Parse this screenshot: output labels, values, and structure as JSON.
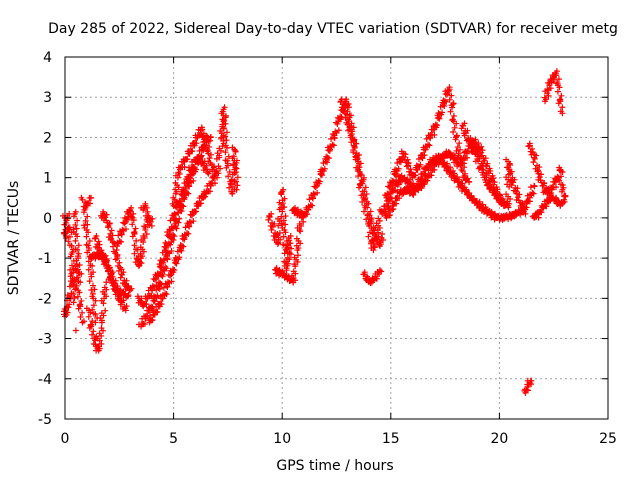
{
  "chart_data": {
    "type": "scatter",
    "title": "Day 285 of 2022, Sidereal Day-to-day VTEC variation (SDTVAR) for receiver metg",
    "xlabel": "GPS time / hours",
    "ylabel": "SDTVAR / TECUs",
    "xlim": [
      0,
      25
    ],
    "ylim": [
      -5,
      4
    ],
    "xticks": [
      0,
      5,
      10,
      15,
      20,
      25
    ],
    "yticks": [
      -5,
      -4,
      -3,
      -2,
      -1,
      0,
      1,
      2,
      3,
      4
    ],
    "grid": true,
    "marker": "+",
    "marker_color": "#ff0000",
    "series": [
      {
        "name": "SDTVAR",
        "points": [
          [
            0.0,
            0.0
          ],
          [
            0.05,
            -0.5
          ],
          [
            0.1,
            0.05
          ],
          [
            0.2,
            -0.3
          ],
          [
            0.3,
            -0.9
          ],
          [
            0.35,
            -1.5
          ],
          [
            0.4,
            -2.1
          ],
          [
            0.1,
            -2.2
          ],
          [
            0.0,
            -2.45
          ],
          [
            0.5,
            -1.2
          ],
          [
            0.6,
            -1.8
          ],
          [
            0.7,
            -2.2
          ],
          [
            0.8,
            -2.6
          ],
          [
            0.5,
            -2.8
          ],
          [
            0.45,
            0.1
          ],
          [
            0.5,
            -0.4
          ],
          [
            0.6,
            -1.0
          ],
          [
            0.7,
            -1.6
          ],
          [
            0.8,
            0.45
          ],
          [
            0.9,
            0.2
          ],
          [
            1.0,
            -0.3
          ],
          [
            1.1,
            -0.8
          ],
          [
            1.2,
            -1.4
          ],
          [
            1.3,
            -2.0
          ],
          [
            1.4,
            -2.6
          ],
          [
            1.1,
            -2.3
          ],
          [
            1.2,
            -2.7
          ],
          [
            1.35,
            -3.0
          ],
          [
            1.45,
            -3.2
          ],
          [
            1.55,
            -3.3
          ],
          [
            1.6,
            -3.05
          ],
          [
            1.7,
            -2.6
          ],
          [
            1.8,
            -2.0
          ],
          [
            1.9,
            -1.6
          ],
          [
            1.0,
            0.3
          ],
          [
            1.2,
            0.5
          ],
          [
            1.2,
            -1.0
          ],
          [
            1.5,
            -0.9
          ],
          [
            1.8,
            -1.0
          ],
          [
            2.0,
            -1.3
          ],
          [
            2.2,
            -1.6
          ],
          [
            2.4,
            -1.9
          ],
          [
            2.6,
            -2.1
          ],
          [
            2.8,
            -2.3
          ],
          [
            1.4,
            -0.5
          ],
          [
            1.6,
            -0.8
          ],
          [
            1.9,
            -1.1
          ],
          [
            2.1,
            -1.4
          ],
          [
            2.3,
            -1.7
          ],
          [
            2.5,
            -1.85
          ],
          [
            2.7,
            -1.9
          ],
          [
            2.9,
            -1.95
          ],
          [
            1.7,
            0.0
          ],
          [
            1.8,
            0.1
          ],
          [
            2.0,
            -0.2
          ],
          [
            2.2,
            -0.6
          ],
          [
            2.4,
            -1.0
          ],
          [
            2.6,
            -1.4
          ],
          [
            2.8,
            -1.7
          ],
          [
            3.0,
            -1.8
          ],
          [
            2.4,
            -0.7
          ],
          [
            2.6,
            -0.4
          ],
          [
            2.8,
            -0.1
          ],
          [
            2.9,
            0.1
          ],
          [
            3.0,
            0.2
          ],
          [
            3.1,
            0.0
          ],
          [
            3.2,
            -0.4
          ],
          [
            3.3,
            -1.0
          ],
          [
            3.4,
            -1.2
          ],
          [
            3.5,
            -1.0
          ],
          [
            3.6,
            -0.6
          ],
          [
            3.7,
            -0.3
          ],
          [
            3.8,
            -0.1
          ],
          [
            3.9,
            0.0
          ],
          [
            4.0,
            -0.2
          ],
          [
            3.6,
            0.2
          ],
          [
            3.7,
            0.3
          ],
          [
            3.8,
            0.0
          ],
          [
            3.4,
            -2.0
          ],
          [
            3.6,
            -2.2
          ],
          [
            3.8,
            -2.0
          ],
          [
            4.0,
            -1.8
          ],
          [
            4.2,
            -1.5
          ],
          [
            4.4,
            -1.2
          ],
          [
            4.6,
            -0.8
          ],
          [
            4.8,
            -0.4
          ],
          [
            5.0,
            0.0
          ],
          [
            5.2,
            0.3
          ],
          [
            5.4,
            0.6
          ],
          [
            5.6,
            0.9
          ],
          [
            5.8,
            1.2
          ],
          [
            6.0,
            1.4
          ],
          [
            6.2,
            1.5
          ],
          [
            6.4,
            1.3
          ],
          [
            6.6,
            1.1
          ],
          [
            3.5,
            -2.7
          ],
          [
            3.7,
            -2.5
          ],
          [
            3.9,
            -2.3
          ],
          [
            4.1,
            -2.05
          ],
          [
            4.3,
            -1.75
          ],
          [
            4.5,
            -1.4
          ],
          [
            4.7,
            -1.0
          ],
          [
            4.9,
            -0.6
          ],
          [
            5.1,
            -0.2
          ],
          [
            5.3,
            0.2
          ],
          [
            5.5,
            0.5
          ],
          [
            5.7,
            0.8
          ],
          [
            5.9,
            1.1
          ],
          [
            6.1,
            1.4
          ],
          [
            6.3,
            1.7
          ],
          [
            6.5,
            1.9
          ],
          [
            6.7,
            2.0
          ],
          [
            3.9,
            -2.6
          ],
          [
            4.1,
            -2.4
          ],
          [
            4.3,
            -2.2
          ],
          [
            4.5,
            -2.0
          ],
          [
            4.7,
            -1.7
          ],
          [
            4.9,
            -1.4
          ],
          [
            5.1,
            -1.1
          ],
          [
            5.3,
            -0.8
          ],
          [
            5.5,
            -0.5
          ],
          [
            5.7,
            -0.2
          ],
          [
            5.9,
            0.1
          ],
          [
            6.1,
            0.3
          ],
          [
            6.3,
            0.5
          ],
          [
            6.5,
            0.6
          ],
          [
            6.7,
            0.8
          ],
          [
            6.9,
            1.0
          ],
          [
            5.0,
            0.3
          ],
          [
            5.1,
            0.6
          ],
          [
            5.2,
            1.0
          ],
          [
            5.3,
            1.2
          ],
          [
            5.5,
            1.4
          ],
          [
            5.7,
            1.6
          ],
          [
            5.9,
            1.8
          ],
          [
            6.1,
            2.0
          ],
          [
            6.3,
            2.2
          ],
          [
            6.4,
            2.0
          ],
          [
            6.6,
            1.6
          ],
          [
            6.8,
            1.2
          ],
          [
            7.0,
            1.0
          ],
          [
            7.1,
            1.5
          ],
          [
            7.2,
            2.0
          ],
          [
            7.3,
            2.4
          ],
          [
            7.3,
            2.7
          ],
          [
            7.4,
            1.8
          ],
          [
            7.5,
            1.3
          ],
          [
            7.6,
            0.9
          ],
          [
            7.7,
            0.6
          ],
          [
            7.8,
            1.2
          ],
          [
            7.8,
            1.7
          ],
          [
            7.9,
            0.7
          ],
          [
            9.4,
            0.05
          ],
          [
            9.8,
            -0.65
          ],
          [
            10.0,
            0.65
          ],
          [
            10.1,
            -0.3
          ],
          [
            10.2,
            -1.3
          ],
          [
            10.3,
            -0.5
          ],
          [
            10.4,
            -0.9
          ],
          [
            9.7,
            -1.3
          ],
          [
            10.0,
            -1.4
          ],
          [
            10.3,
            -1.5
          ],
          [
            10.5,
            -1.6
          ],
          [
            10.6,
            -1.2
          ],
          [
            10.7,
            -0.8
          ],
          [
            10.8,
            -0.3
          ],
          [
            10.9,
            0.0
          ],
          [
            10.5,
            0.2
          ],
          [
            10.8,
            0.1
          ],
          [
            11.0,
            0.05
          ],
          [
            11.2,
            0.2
          ],
          [
            11.4,
            0.5
          ],
          [
            11.6,
            0.8
          ],
          [
            11.8,
            1.1
          ],
          [
            12.0,
            1.4
          ],
          [
            12.2,
            1.7
          ],
          [
            12.4,
            2.0
          ],
          [
            12.6,
            2.4
          ],
          [
            12.8,
            2.7
          ],
          [
            12.9,
            2.9
          ],
          [
            13.0,
            2.8
          ],
          [
            13.1,
            2.5
          ],
          [
            13.2,
            2.2
          ],
          [
            13.3,
            1.9
          ],
          [
            13.4,
            1.5
          ],
          [
            13.5,
            1.2
          ],
          [
            13.6,
            0.8
          ],
          [
            13.8,
            0.3
          ],
          [
            14.0,
            -0.2
          ],
          [
            14.1,
            -0.6
          ],
          [
            14.2,
            -0.8
          ],
          [
            14.3,
            -0.5
          ],
          [
            14.4,
            -0.3
          ],
          [
            14.5,
            0.2
          ],
          [
            12.7,
            2.9
          ],
          [
            12.9,
            2.6
          ],
          [
            13.1,
            2.2
          ],
          [
            13.3,
            1.8
          ],
          [
            13.5,
            1.4
          ],
          [
            13.7,
            0.9
          ],
          [
            13.9,
            0.4
          ],
          [
            14.1,
            -0.1
          ],
          [
            14.2,
            -0.3
          ],
          [
            14.4,
            -0.6
          ],
          [
            14.5,
            -0.7
          ],
          [
            14.6,
            -0.4
          ],
          [
            13.8,
            -1.4
          ],
          [
            14.0,
            -1.6
          ],
          [
            14.2,
            -1.55
          ],
          [
            14.4,
            -1.4
          ],
          [
            14.5,
            -1.3
          ],
          [
            14.8,
            0.5
          ],
          [
            15.0,
            0.8
          ],
          [
            15.2,
            1.1
          ],
          [
            15.4,
            1.4
          ],
          [
            15.6,
            1.6
          ],
          [
            15.8,
            1.3
          ],
          [
            16.0,
            1.0
          ],
          [
            16.2,
            1.2
          ],
          [
            16.4,
            1.5
          ],
          [
            16.6,
            1.7
          ],
          [
            16.8,
            2.0
          ],
          [
            17.0,
            2.2
          ],
          [
            17.2,
            2.5
          ],
          [
            17.4,
            2.8
          ],
          [
            17.6,
            3.1
          ],
          [
            17.7,
            3.2
          ],
          [
            17.8,
            2.8
          ],
          [
            17.9,
            2.4
          ],
          [
            18.0,
            2.0
          ],
          [
            18.2,
            1.5
          ],
          [
            18.4,
            1.0
          ],
          [
            18.6,
            0.9
          ],
          [
            14.6,
            0.1
          ],
          [
            14.9,
            0.4
          ],
          [
            15.2,
            0.8
          ],
          [
            15.5,
            1.0
          ],
          [
            15.8,
            0.9
          ],
          [
            16.1,
            0.7
          ],
          [
            16.4,
            0.8
          ],
          [
            16.7,
            1.0
          ],
          [
            17.0,
            1.3
          ],
          [
            17.3,
            1.5
          ],
          [
            17.6,
            1.6
          ],
          [
            17.9,
            1.5
          ],
          [
            18.2,
            1.3
          ],
          [
            18.5,
            1.6
          ],
          [
            18.8,
            1.9
          ],
          [
            19.1,
            1.7
          ],
          [
            19.4,
            1.3
          ],
          [
            19.7,
            0.9
          ],
          [
            20.0,
            0.5
          ],
          [
            20.2,
            0.3
          ],
          [
            14.8,
            0.0
          ],
          [
            15.1,
            0.3
          ],
          [
            15.4,
            0.6
          ],
          [
            15.7,
            0.7
          ],
          [
            16.0,
            0.6
          ],
          [
            16.3,
            0.9
          ],
          [
            16.6,
            1.2
          ],
          [
            16.9,
            1.4
          ],
          [
            17.2,
            1.5
          ],
          [
            17.5,
            1.3
          ],
          [
            17.8,
            1.1
          ],
          [
            18.1,
            0.9
          ],
          [
            18.4,
            0.7
          ],
          [
            18.7,
            0.5
          ],
          [
            19.0,
            0.35
          ],
          [
            19.3,
            0.2
          ],
          [
            19.6,
            0.1
          ],
          [
            19.9,
            0.0
          ],
          [
            20.2,
            0.0
          ],
          [
            20.5,
            0.05
          ],
          [
            20.8,
            0.1
          ],
          [
            21.1,
            0.2
          ],
          [
            21.4,
            0.5
          ],
          [
            21.6,
            0.8
          ],
          [
            18.3,
            2.3
          ],
          [
            18.6,
            1.9
          ],
          [
            18.9,
            1.6
          ],
          [
            19.2,
            1.2
          ],
          [
            19.5,
            0.8
          ],
          [
            19.8,
            0.6
          ],
          [
            20.1,
            0.4
          ],
          [
            20.4,
            0.3
          ],
          [
            20.4,
            1.4
          ],
          [
            20.5,
            1.1
          ],
          [
            20.6,
            0.9
          ],
          [
            20.8,
            0.6
          ],
          [
            21.0,
            0.3
          ],
          [
            21.2,
            0.1
          ],
          [
            21.4,
            1.8
          ],
          [
            21.6,
            1.5
          ],
          [
            21.8,
            1.1
          ],
          [
            22.0,
            0.8
          ],
          [
            22.2,
            0.6
          ],
          [
            22.4,
            0.7
          ],
          [
            22.6,
            0.9
          ],
          [
            22.8,
            1.2
          ],
          [
            22.9,
            0.7
          ],
          [
            23.0,
            0.4
          ],
          [
            21.6,
            0.0
          ],
          [
            21.8,
            0.1
          ],
          [
            22.0,
            0.25
          ],
          [
            22.2,
            0.4
          ],
          [
            22.4,
            0.5
          ],
          [
            22.6,
            0.45
          ],
          [
            22.8,
            0.3
          ],
          [
            23.0,
            0.55
          ],
          [
            22.1,
            2.9
          ],
          [
            22.2,
            3.1
          ],
          [
            22.3,
            3.3
          ],
          [
            22.4,
            3.4
          ],
          [
            22.5,
            3.5
          ],
          [
            22.6,
            3.6
          ],
          [
            22.7,
            3.3
          ],
          [
            22.8,
            2.9
          ],
          [
            22.9,
            2.6
          ],
          [
            21.2,
            -4.35
          ],
          [
            21.3,
            -4.2
          ],
          [
            21.4,
            -4.1
          ],
          [
            21.45,
            -4.05
          ]
        ]
      }
    ]
  }
}
